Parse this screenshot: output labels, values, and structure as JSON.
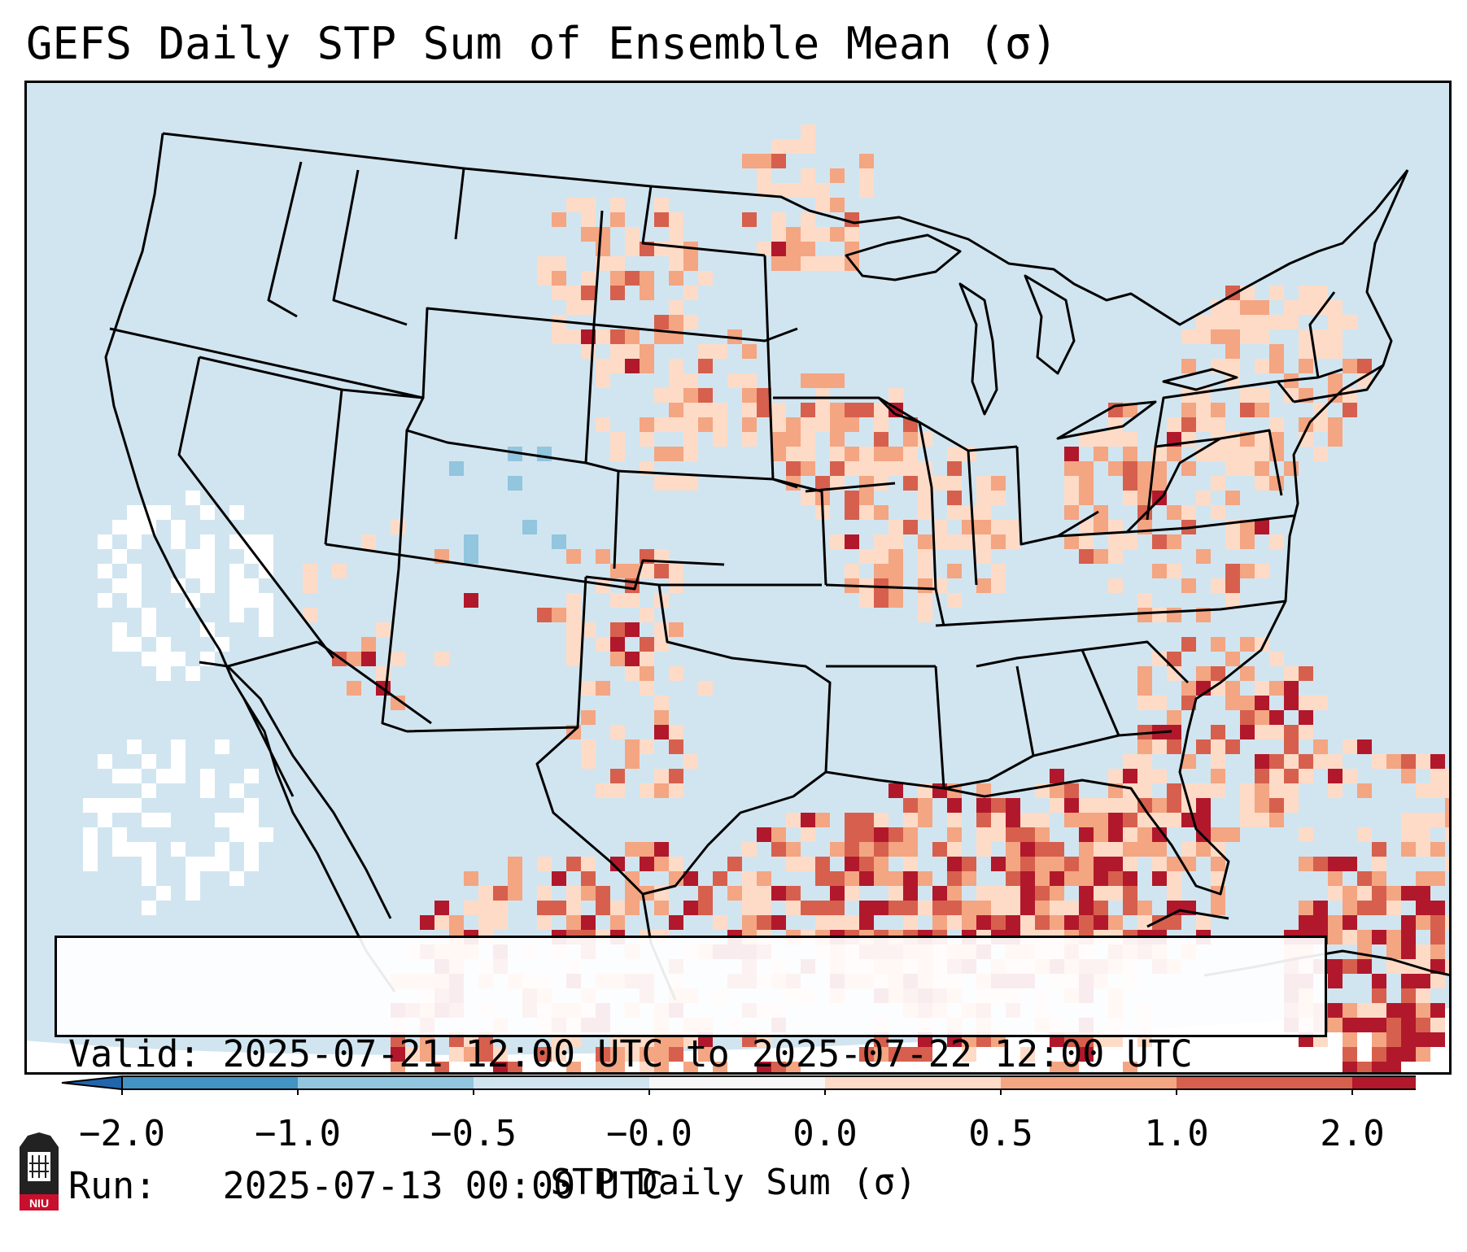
{
  "title": "GEFS Daily STP Sum of Ensemble Mean (σ)",
  "map": {
    "region": "Contiguous United States",
    "ocean_color": "#d1e5f0",
    "border_color": "#000000"
  },
  "info": {
    "valid_label": "Valid:",
    "valid_value": "2025-07-21 12:00 UTC to 2025-07-22 12:00 UTC",
    "run_label": "Run:",
    "run_value": "2025-07-13 00:00 UTC"
  },
  "colorbar": {
    "label": "STP Daily Sum (σ)",
    "ticks": [
      "−2.0",
      "−1.0",
      "−0.5",
      "−0.0",
      "0.0",
      "0.5",
      "1.0",
      "2.0"
    ],
    "bins": [
      {
        "min": -2.0,
        "max": -1.0,
        "color": "#4393c3"
      },
      {
        "min": -1.0,
        "max": -0.5,
        "color": "#92c5de"
      },
      {
        "min": -0.5,
        "max": 0.0,
        "color": "#d1e5f0"
      },
      {
        "min": 0.0,
        "max": 0.0,
        "color": "#f7f7f7"
      },
      {
        "min": 0.0,
        "max": 0.5,
        "color": "#fddbc7"
      },
      {
        "min": 0.5,
        "max": 1.0,
        "color": "#f4a582"
      },
      {
        "min": 1.0,
        "max": 2.0,
        "color": "#d6604d"
      },
      {
        "min": 2.0,
        "max": 3.0,
        "color": "#b2182b"
      }
    ],
    "under_color": "#2166ac",
    "over_color": "#b2182b"
  },
  "logo_text": "NIU"
}
